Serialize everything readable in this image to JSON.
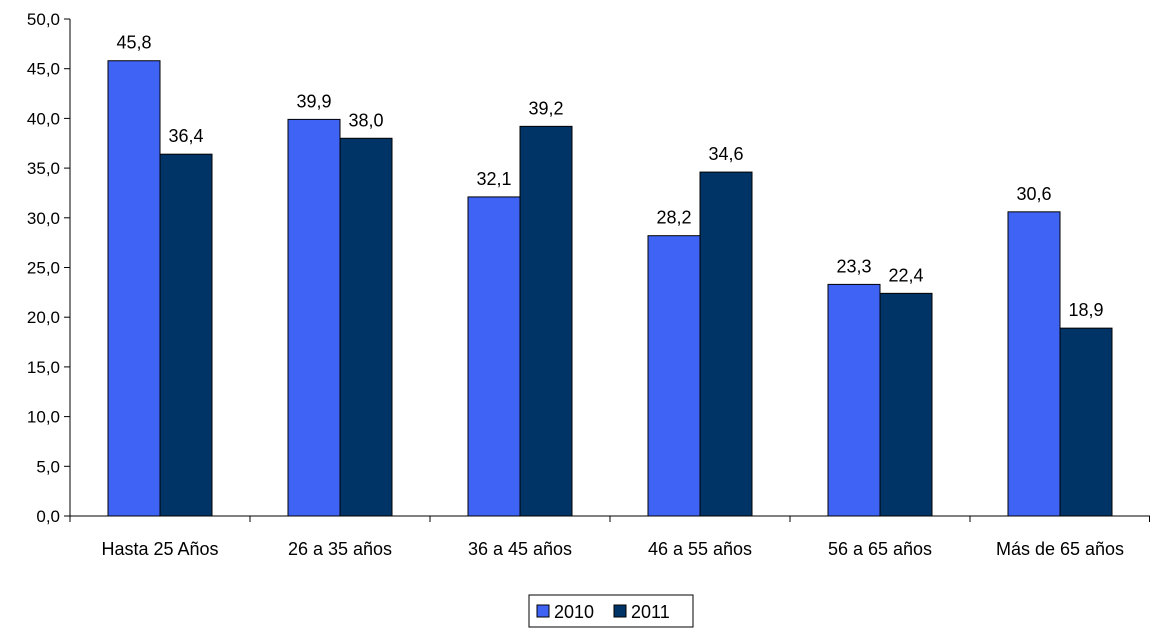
{
  "chart_data": {
    "type": "bar",
    "categories": [
      "Hasta 25 Años",
      "26 a 35 años",
      "36 a 45 años",
      "46 a 55 años",
      "56 a 65 años",
      "Más de 65 años"
    ],
    "series": [
      {
        "name": "2010",
        "values": [
          45.8,
          39.9,
          32.1,
          28.2,
          23.3,
          30.6
        ],
        "color": "#3f63f5"
      },
      {
        "name": "2011",
        "values": [
          36.4,
          38.0,
          39.2,
          34.6,
          22.4,
          18.9
        ],
        "color": "#003366"
      }
    ],
    "title": "",
    "xlabel": "",
    "ylabel": "",
    "ylim": [
      0,
      50
    ],
    "y_ticks": [
      "0,0",
      "5,0",
      "10,0",
      "15,0",
      "20,0",
      "25,0",
      "30,0",
      "35,0",
      "40,0",
      "45,0",
      "50,0"
    ],
    "data_labels": [
      [
        "45,8",
        "39,9",
        "32,1",
        "28,2",
        "23,3",
        "30,6"
      ],
      [
        "36,4",
        "38,0",
        "39,2",
        "34,6",
        "22,4",
        "18,9"
      ]
    ],
    "grid": false,
    "legend": "bottom-center"
  }
}
